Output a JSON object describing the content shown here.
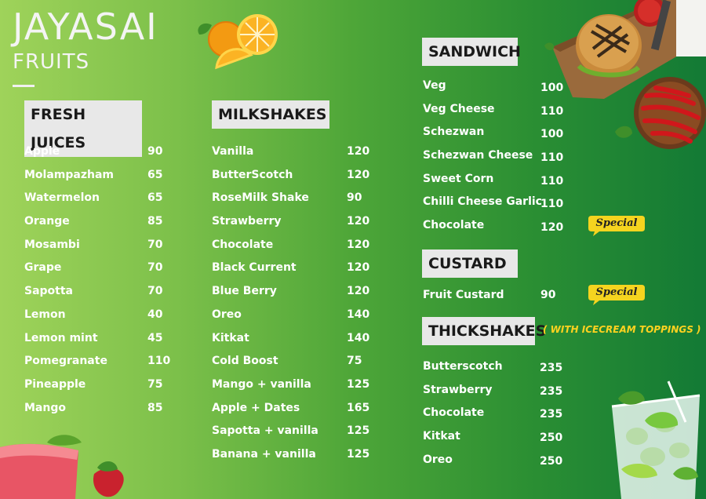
{
  "brand": {
    "name": "JAYASAI",
    "subtitle": "FRUITS"
  },
  "fresh_juices": {
    "title": "FRESH JUICES",
    "items": [
      {
        "name": "Apple",
        "price": "90"
      },
      {
        "name": "Molampazham",
        "price": "65"
      },
      {
        "name": "Watermelon",
        "price": "65"
      },
      {
        "name": "Orange",
        "price": "85"
      },
      {
        "name": "Mosambi",
        "price": "70"
      },
      {
        "name": "Grape",
        "price": "70"
      },
      {
        "name": "Sapotta",
        "price": "70"
      },
      {
        "name": "Lemon",
        "price": "40"
      },
      {
        "name": "Lemon mint",
        "price": "45"
      },
      {
        "name": "Pomegranate",
        "price": "110"
      },
      {
        "name": "Pineapple",
        "price": "75"
      },
      {
        "name": "Mango",
        "price": "85"
      }
    ]
  },
  "milkshakes": {
    "title": "MILKSHAKES",
    "items": [
      {
        "name": "Vanilla",
        "price": "120"
      },
      {
        "name": "ButterScotch",
        "price": "120"
      },
      {
        "name": "RoseMilk Shake",
        "price": "90"
      },
      {
        "name": "Strawberry",
        "price": "120"
      },
      {
        "name": "Chocolate",
        "price": "120"
      },
      {
        "name": "Black Current",
        "price": "120"
      },
      {
        "name": "Blue Berry",
        "price": "120"
      },
      {
        "name": "Oreo",
        "price": "140"
      },
      {
        "name": "Kitkat",
        "price": "140"
      },
      {
        "name": "Cold Boost",
        "price": "75"
      },
      {
        "name": "Mango + vanilla",
        "price": "125"
      },
      {
        "name": "Apple + Dates",
        "price": "165"
      },
      {
        "name": "Sapotta + vanilla",
        "price": "125"
      },
      {
        "name": "Banana + vanilla",
        "price": "125"
      }
    ]
  },
  "sandwich": {
    "title": "SANDWICH",
    "items": [
      {
        "name": "Veg",
        "price": "100"
      },
      {
        "name": "Veg Cheese",
        "price": "110"
      },
      {
        "name": "Schezwan",
        "price": "100"
      },
      {
        "name": "Schezwan Cheese",
        "price": "110"
      },
      {
        "name": "Sweet Corn",
        "price": "110"
      },
      {
        "name": "Chilli Cheese Garlic",
        "price": "110"
      },
      {
        "name": "Chocolate",
        "price": "120"
      }
    ]
  },
  "custard": {
    "title": "CUSTARD",
    "items": [
      {
        "name": "Fruit Custard",
        "price": "90"
      }
    ]
  },
  "thickshakes": {
    "title": "THICKSHAKES",
    "note": "( WITH ICECREAM TOPPINGS )",
    "items": [
      {
        "name": "Butterscotch",
        "price": "235"
      },
      {
        "name": "Strawberry",
        "price": "235"
      },
      {
        "name": "Chocolate",
        "price": "235"
      },
      {
        "name": "Kitkat",
        "price": "250"
      },
      {
        "name": "Oreo",
        "price": "250"
      }
    ]
  },
  "badges": {
    "special": "Special"
  },
  "colors": {
    "badge_yellow": "#f5d41f",
    "title_box": "#e8e8e8",
    "text": "#ffffff",
    "note": "#ffd21f"
  },
  "images": [
    "orange-slices",
    "burger-board",
    "red-chillies",
    "strawberry-juice",
    "lime-mojito"
  ]
}
